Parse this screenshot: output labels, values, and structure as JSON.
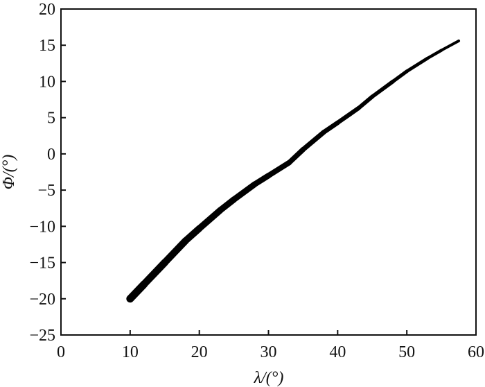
{
  "chart_data": {
    "type": "line",
    "title": "",
    "xlabel": "λ/(°)",
    "ylabel": "Φ/(°)",
    "xlim": [
      0,
      60
    ],
    "ylim": [
      -25,
      20
    ],
    "xticks": [
      "0",
      "10",
      "20",
      "30",
      "40",
      "50",
      "60"
    ],
    "yticks": [
      "20",
      "15",
      "10",
      "5",
      "0",
      "−5",
      "−10",
      "−15",
      "−20",
      "−25"
    ],
    "grid": false,
    "line_color": "#000000",
    "series": [
      {
        "x": [
          10,
          12,
          15,
          18,
          20,
          23,
          25,
          28,
          30,
          33,
          35,
          38,
          40,
          43,
          45,
          48,
          50,
          53,
          55,
          57.5
        ],
        "y": [
          -20,
          -18,
          -15,
          -12,
          -10.3,
          -7.8,
          -6.3,
          -4.2,
          -3,
          -1.2,
          0.6,
          3,
          4.3,
          6.3,
          7.9,
          10,
          11.4,
          13.2,
          14.3,
          15.6
        ]
      }
    ]
  }
}
